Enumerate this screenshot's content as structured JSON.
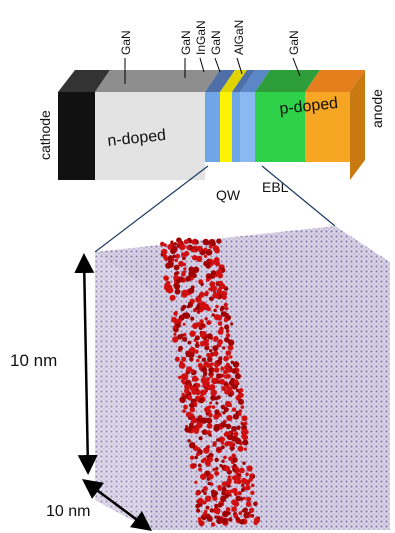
{
  "device": {
    "layer_labels": [
      "GaN",
      "GaN",
      "InGaN",
      "GaN",
      "AlGaN",
      "GaN"
    ],
    "cathode": "cathode",
    "anode": "anode",
    "n_region": "n-doped",
    "p_region": "p-doped",
    "qw": "QW",
    "ebl": "EBL"
  },
  "cube": {
    "height_label": "10 nm",
    "depth_label": "10 nm"
  }
}
